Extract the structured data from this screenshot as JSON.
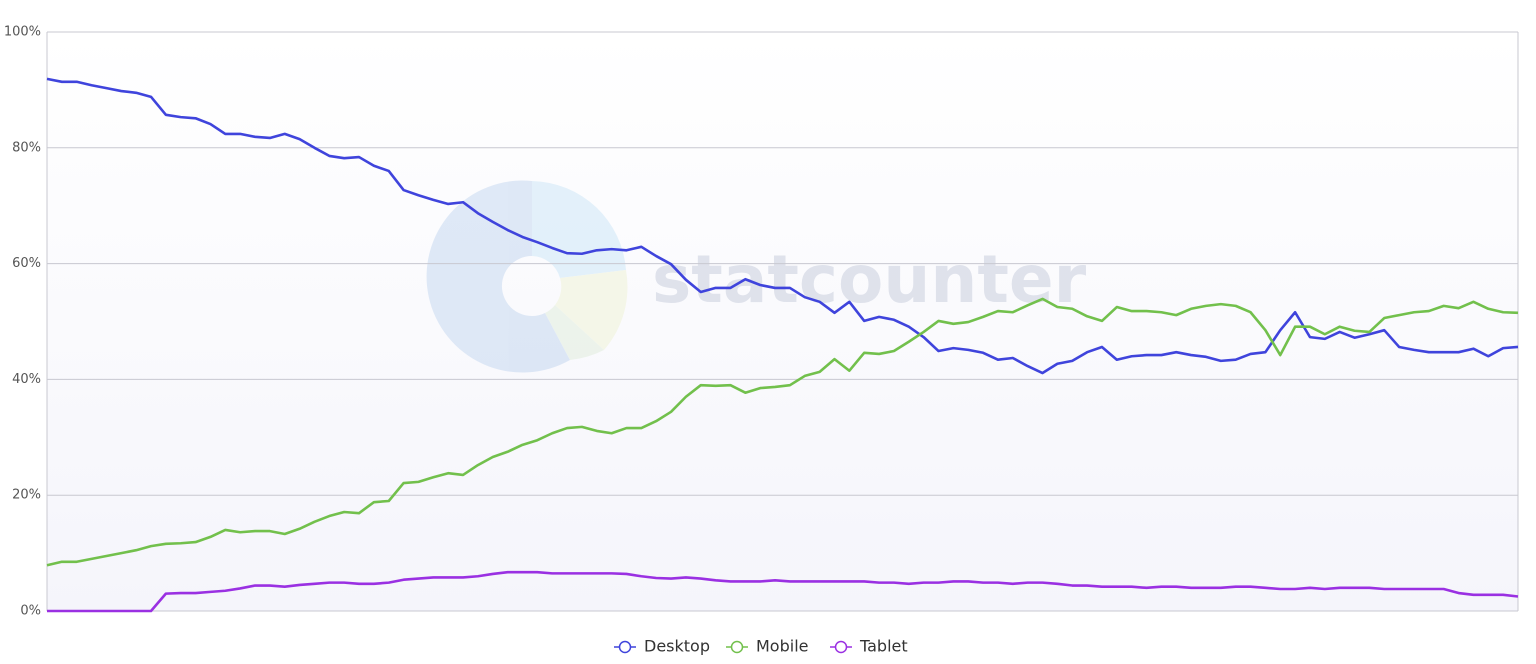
{
  "chart_data": {
    "type": "line",
    "watermark": "statcounter",
    "ylim": [
      0,
      100
    ],
    "yticks": [
      {
        "value": 0,
        "label": "0%"
      },
      {
        "value": 20,
        "label": "20%"
      },
      {
        "value": 40,
        "label": "40%"
      },
      {
        "value": 60,
        "label": "60%"
      },
      {
        "value": 80,
        "label": "80%"
      },
      {
        "value": 100,
        "label": "100%"
      }
    ],
    "grid": true,
    "legend": "bottom",
    "series": [
      {
        "name": "Desktop",
        "color": "#3f44dc",
        "values": [
          91.9,
          91.4,
          91.4,
          90.8,
          90.3,
          89.8,
          89.5,
          88.8,
          85.7,
          85.3,
          85.1,
          84.1,
          82.4,
          82.4,
          81.9,
          81.7,
          82.4,
          81.5,
          80.0,
          78.6,
          78.2,
          78.4,
          76.9,
          76.0,
          72.7,
          71.8,
          71.0,
          70.3,
          70.6,
          68.7,
          67.2,
          65.8,
          64.6,
          63.7,
          62.7,
          61.8,
          61.7,
          62.3,
          62.5,
          62.3,
          62.9,
          61.3,
          59.9,
          57.2,
          55.1,
          55.8,
          55.8,
          57.3,
          56.3,
          55.8,
          55.8,
          54.2,
          53.4,
          51.5,
          53.4,
          50.1,
          50.8,
          50.3,
          49.1,
          47.3,
          44.9,
          45.4,
          45.1,
          44.6,
          43.4,
          43.7,
          42.3,
          41.1,
          42.7,
          43.2,
          44.7,
          45.6,
          43.4,
          44.0,
          44.2,
          44.2,
          44.7,
          44.2,
          43.9,
          43.2,
          43.4,
          44.4,
          44.7,
          48.5,
          51.6,
          47.3,
          47.0,
          48.2,
          47.2,
          47.8,
          48.5,
          45.6,
          45.1,
          44.7,
          44.7,
          44.7,
          45.3,
          44.0,
          45.4,
          45.6
        ]
      },
      {
        "name": "Mobile",
        "color": "#72c04c",
        "values": [
          7.9,
          8.5,
          8.5,
          9.0,
          9.5,
          10.0,
          10.5,
          11.2,
          11.6,
          11.7,
          11.9,
          12.8,
          14.0,
          13.6,
          13.8,
          13.8,
          13.3,
          14.2,
          15.4,
          16.4,
          17.1,
          16.9,
          18.8,
          19.0,
          22.1,
          22.3,
          23.1,
          23.8,
          23.5,
          25.2,
          26.6,
          27.5,
          28.7,
          29.5,
          30.7,
          31.6,
          31.8,
          31.1,
          30.7,
          31.6,
          31.6,
          32.8,
          34.4,
          37.0,
          39.0,
          38.9,
          39.0,
          37.7,
          38.5,
          38.7,
          39.0,
          40.6,
          41.3,
          43.5,
          41.5,
          44.6,
          44.4,
          44.9,
          46.5,
          48.2,
          50.1,
          49.6,
          49.9,
          50.8,
          51.8,
          51.6,
          52.8,
          53.9,
          52.5,
          52.2,
          50.9,
          50.1,
          52.5,
          51.8,
          51.8,
          51.6,
          51.1,
          52.2,
          52.7,
          53.0,
          52.7,
          51.6,
          48.5,
          44.2,
          49.1,
          49.1,
          47.8,
          49.1,
          48.4,
          48.2,
          50.6,
          51.1,
          51.6,
          51.8,
          52.7,
          52.3,
          53.4,
          52.2,
          51.6,
          51.5
        ]
      },
      {
        "name": "Tablet",
        "color": "#9a30e2",
        "values": [
          0,
          0,
          0,
          0,
          0,
          0,
          0,
          0,
          3.0,
          3.1,
          3.1,
          3.3,
          3.5,
          3.9,
          4.4,
          4.4,
          4.2,
          4.5,
          4.7,
          4.9,
          4.9,
          4.7,
          4.7,
          4.9,
          5.4,
          5.6,
          5.8,
          5.8,
          5.8,
          6.0,
          6.4,
          6.7,
          6.7,
          6.7,
          6.5,
          6.5,
          6.5,
          6.5,
          6.5,
          6.4,
          6.0,
          5.7,
          5.6,
          5.8,
          5.6,
          5.3,
          5.1,
          5.1,
          5.1,
          5.3,
          5.1,
          5.1,
          5.1,
          5.1,
          5.1,
          5.1,
          4.9,
          4.9,
          4.7,
          4.9,
          4.9,
          5.1,
          5.1,
          4.9,
          4.9,
          4.7,
          4.9,
          4.9,
          4.7,
          4.4,
          4.4,
          4.2,
          4.2,
          4.2,
          4.0,
          4.2,
          4.2,
          4.0,
          4.0,
          4.0,
          4.2,
          4.2,
          4.0,
          3.8,
          3.8,
          4.0,
          3.8,
          4.0,
          4.0,
          4.0,
          3.8,
          3.8,
          3.8,
          3.8,
          3.8,
          3.1,
          2.8,
          2.8,
          2.8,
          2.5
        ]
      }
    ]
  }
}
